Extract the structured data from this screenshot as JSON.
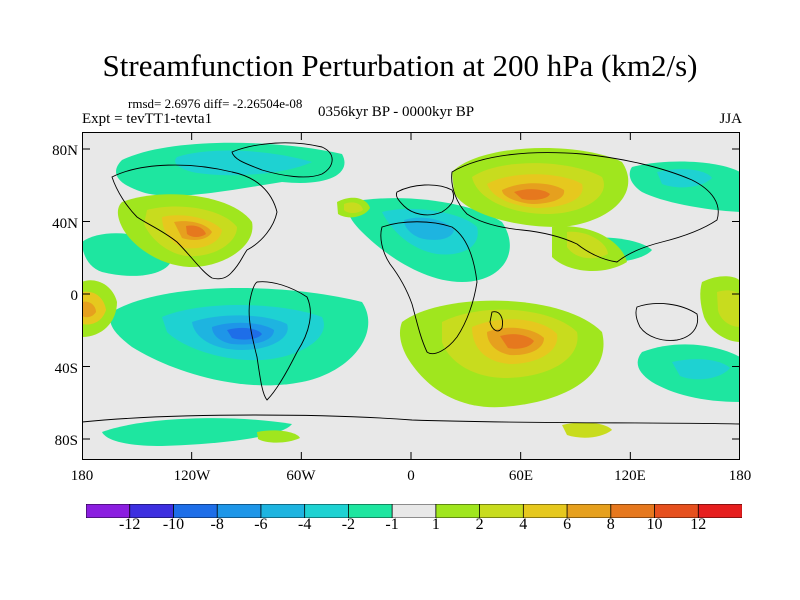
{
  "title": "Streamfunction Perturbation at 200 hPa (km2/s)",
  "stats": "rmsd= 2.6976  diff= -2.26504e-08",
  "experiment": "Expt = tevTT1-tevta1",
  "period": "0356kyr BP - 0000kyr BP",
  "season": "JJA",
  "axes": {
    "y_ticks": [
      "80N",
      "40N",
      "0",
      "40S",
      "80S"
    ],
    "x_ticks": [
      "180",
      "120W",
      "60W",
      "0",
      "60E",
      "120E",
      "180"
    ]
  },
  "colorbar": {
    "labels": [
      "-12",
      "-10",
      "-8",
      "-6",
      "-4",
      "-2",
      "-1",
      "1",
      "2",
      "4",
      "6",
      "8",
      "10",
      "12"
    ],
    "colors": [
      "#8b1ee0",
      "#3d2fe0",
      "#1e6ee8",
      "#1e96e8",
      "#1eb4e0",
      "#1ed2d2",
      "#1ee6a0",
      "#e8e8e8",
      "#a0e61e",
      "#c8dc1e",
      "#e6c81e",
      "#e6a01e",
      "#e6781e",
      "#e6501e",
      "#e61e1e"
    ]
  },
  "colors": {
    "neutral": "#e8e8e8",
    "coast": "#000000"
  }
}
